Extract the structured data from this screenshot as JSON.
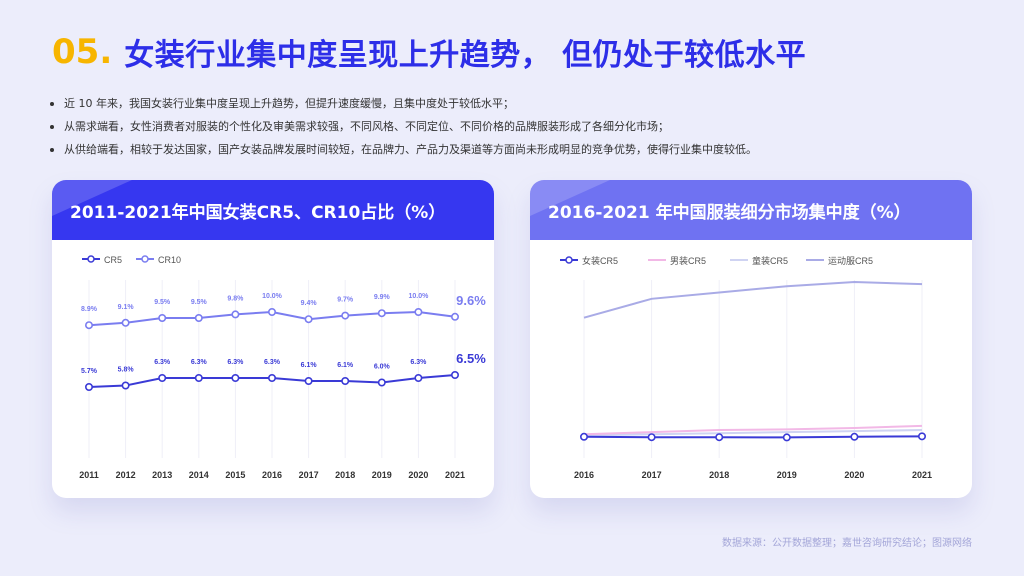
{
  "title": {
    "number": "05.",
    "text": "女装行业集中度呈现上升趋势， 但仍处于较低水平"
  },
  "bullets": [
    "近 10 年来，我国女装行业集中度呈现上升趋势，但提升速度缓慢，且集中度处于较低水平；",
    "从需求端看，女性消费者对服装的个性化及审美需求较强，不同风格、不同定位、不同价格的品牌服装形成了各细分化市场；",
    "从供给端看，相较于发达国家，国产女装品牌发展时间较短，在品牌力、产品力及渠道等方面尚未形成明显的竞争优势，使得行业集中度较低。"
  ],
  "source": "数据来源：公开数据整理；嘉世咨询研究结论；图源网络",
  "colors": {
    "accent_blue": "#2d2ee8",
    "accent_yellow": "#f7b500",
    "cr5": "#3a3ad6",
    "cr10": "#7a7df0",
    "menswear": "#f2b8e6",
    "kidswear": "#cfd3f2",
    "sportswear": "#a9abe6"
  },
  "chart_data": [
    {
      "type": "line",
      "title": "2011-2021年中国女装CR5、CR10占比（%）",
      "categories": [
        "2011",
        "2012",
        "2013",
        "2014",
        "2015",
        "2016",
        "2017",
        "2018",
        "2019",
        "2020",
        "2021"
      ],
      "series": [
        {
          "name": "CR5",
          "values": [
            5.7,
            5.8,
            6.3,
            6.3,
            6.3,
            6.3,
            6.1,
            6.1,
            6.0,
            6.3,
            6.5
          ],
          "labels": [
            "5.7%",
            "5.8%",
            "6.3%",
            "6.3%",
            "6.3%",
            "6.3%",
            "6.1%",
            "6.1%",
            "6.0%",
            "6.3%",
            "6.5%"
          ]
        },
        {
          "name": "CR10",
          "values": [
            8.9,
            9.1,
            9.5,
            9.5,
            9.8,
            10.0,
            9.4,
            9.7,
            9.9,
            10.0,
            9.6
          ],
          "labels": [
            "8.9%",
            "9.1%",
            "9.5%",
            "9.5%",
            "9.8%",
            "10.0%",
            "9.4%",
            "9.7%",
            "9.9%",
            "10.0%",
            "9.6%"
          ]
        }
      ],
      "legend_position": "top-left",
      "grid": "vertical"
    },
    {
      "type": "line",
      "title": "2016-2021 年中国服装细分市场集中度（%）",
      "categories": [
        "2016",
        "2017",
        "2018",
        "2019",
        "2020",
        "2021"
      ],
      "series": [
        {
          "name": "女装CR5",
          "values": [
            6.3,
            6.1,
            6.1,
            6.0,
            6.3,
            6.5
          ]
        },
        {
          "name": "男装CR5",
          "values": [
            7.5,
            8.5,
            9.5,
            9.8,
            10.5,
            11.5
          ]
        },
        {
          "name": "童装CR5",
          "values": [
            7.0,
            7.5,
            8.0,
            8.5,
            9.0,
            9.5
          ]
        },
        {
          "name": "运动服CR5",
          "values": [
            63,
            72,
            75,
            78,
            80,
            79
          ]
        }
      ],
      "legend_position": "top-left",
      "grid": "vertical"
    }
  ]
}
